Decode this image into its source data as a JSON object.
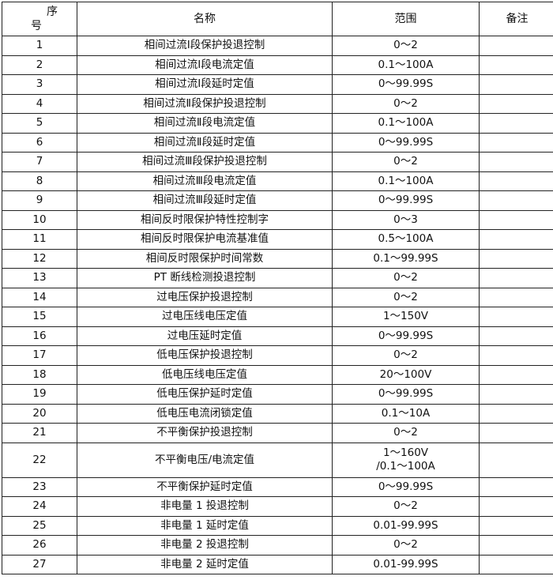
{
  "header": {
    "no_line1": "序",
    "no_line2": "号",
    "name": "名称",
    "range": "范围",
    "note": "备注"
  },
  "rows": [
    {
      "no": "1",
      "name": "相间过流Ⅰ段保护投退控制",
      "range": [
        "0～2"
      ],
      "note": ""
    },
    {
      "no": "2",
      "name": "相间过流Ⅰ段电流定值",
      "range": [
        "0.1～100A"
      ],
      "note": ""
    },
    {
      "no": "3",
      "name": "相间过流Ⅰ段延时定值",
      "range": [
        "0～99.99S"
      ],
      "note": ""
    },
    {
      "no": "4",
      "name": "相间过流Ⅱ段保护投退控制",
      "range": [
        "0～2"
      ],
      "note": ""
    },
    {
      "no": "5",
      "name": "相间过流Ⅱ段电流定值",
      "range": [
        "0.1～100A"
      ],
      "note": ""
    },
    {
      "no": "6",
      "name": "相间过流Ⅱ段延时定值",
      "range": [
        "0～99.99S"
      ],
      "note": ""
    },
    {
      "no": "7",
      "name": "相间过流Ⅲ段保护投退控制",
      "range": [
        "0～2"
      ],
      "note": ""
    },
    {
      "no": "8",
      "name": "相间过流Ⅲ段电流定值",
      "range": [
        "0.1～100A"
      ],
      "note": ""
    },
    {
      "no": "9",
      "name": "相间过流Ⅲ段延时定值",
      "range": [
        "0～99.99S"
      ],
      "note": ""
    },
    {
      "no": "10",
      "name": "相间反时限保护特性控制字",
      "range": [
        "0～3"
      ],
      "note": ""
    },
    {
      "no": "11",
      "name": "相间反时限保护电流基准值",
      "range": [
        "0.5～100A"
      ],
      "note": ""
    },
    {
      "no": "12",
      "name": "相间反时限保护时间常数",
      "range": [
        "0.1～99.99S"
      ],
      "note": ""
    },
    {
      "no": "13",
      "name": "PT 断线检测投退控制",
      "range": [
        "0～2"
      ],
      "note": ""
    },
    {
      "no": "14",
      "name": "过电压保护投退控制",
      "range": [
        "0～2"
      ],
      "note": ""
    },
    {
      "no": "15",
      "name": "过电压线电压定值",
      "range": [
        "1～150V"
      ],
      "note": ""
    },
    {
      "no": "16",
      "name": "过电压延时定值",
      "range": [
        "0～99.99S"
      ],
      "note": ""
    },
    {
      "no": "17",
      "name": "低电压保护投退控制",
      "range": [
        "0～2"
      ],
      "note": ""
    },
    {
      "no": "18",
      "name": "低电压线电压定值",
      "range": [
        "20～100V"
      ],
      "note": ""
    },
    {
      "no": "19",
      "name": "低电压保护延时定值",
      "range": [
        "0～99.99S"
      ],
      "note": ""
    },
    {
      "no": "20",
      "name": "低电压电流闭锁定值",
      "range": [
        "0.1～10A"
      ],
      "note": ""
    },
    {
      "no": "21",
      "name": "不平衡保护投退控制",
      "range": [
        "0～2"
      ],
      "note": ""
    },
    {
      "no": "22",
      "name": "不平衡电压/电流定值",
      "range": [
        "1～160V",
        "/0.1～100A"
      ],
      "note": ""
    },
    {
      "no": "23",
      "name": "不平衡保护延时定值",
      "range": [
        "0～99.99S"
      ],
      "note": ""
    },
    {
      "no": "24",
      "name": "非电量 1 投退控制",
      "range": [
        "0～2"
      ],
      "note": ""
    },
    {
      "no": "25",
      "name": "非电量 1 延时定值",
      "range": [
        "0.01-99.99S"
      ],
      "note": ""
    },
    {
      "no": "26",
      "name": "非电量 2 投退控制",
      "range": [
        "0～2"
      ],
      "note": ""
    },
    {
      "no": "27",
      "name": "非电量 2 延时定值",
      "range": [
        "0.01-99.99S"
      ],
      "note": ""
    }
  ]
}
